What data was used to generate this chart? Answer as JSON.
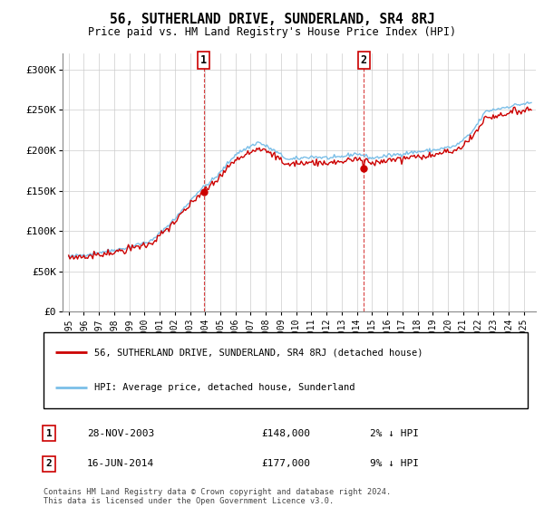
{
  "title": "56, SUTHERLAND DRIVE, SUNDERLAND, SR4 8RJ",
  "subtitle": "Price paid vs. HM Land Registry's House Price Index (HPI)",
  "legend_line1": "56, SUTHERLAND DRIVE, SUNDERLAND, SR4 8RJ (detached house)",
  "legend_line2": "HPI: Average price, detached house, Sunderland",
  "sale1_date": "28-NOV-2003",
  "sale1_price": "£148,000",
  "sale1_hpi": "2% ↓ HPI",
  "sale2_date": "16-JUN-2014",
  "sale2_price": "£177,000",
  "sale2_hpi": "9% ↓ HPI",
  "footer": "Contains HM Land Registry data © Crown copyright and database right 2024.\nThis data is licensed under the Open Government Licence v3.0.",
  "ylim": [
    0,
    320000
  ],
  "yticks": [
    0,
    50000,
    100000,
    150000,
    200000,
    250000,
    300000
  ],
  "ytick_labels": [
    "£0",
    "£50K",
    "£100K",
    "£150K",
    "£200K",
    "£250K",
    "£300K"
  ],
  "sale1_x": 2003.91,
  "sale1_y": 148000,
  "sale2_x": 2014.46,
  "sale2_y": 177000,
  "hpi_color": "#7bbfe8",
  "sale_color": "#cc0000",
  "dot_color": "#cc0000",
  "vline_color": "#cc0000",
  "grid_color": "#cccccc",
  "xlim_left": 1994.6,
  "xlim_right": 2025.8
}
